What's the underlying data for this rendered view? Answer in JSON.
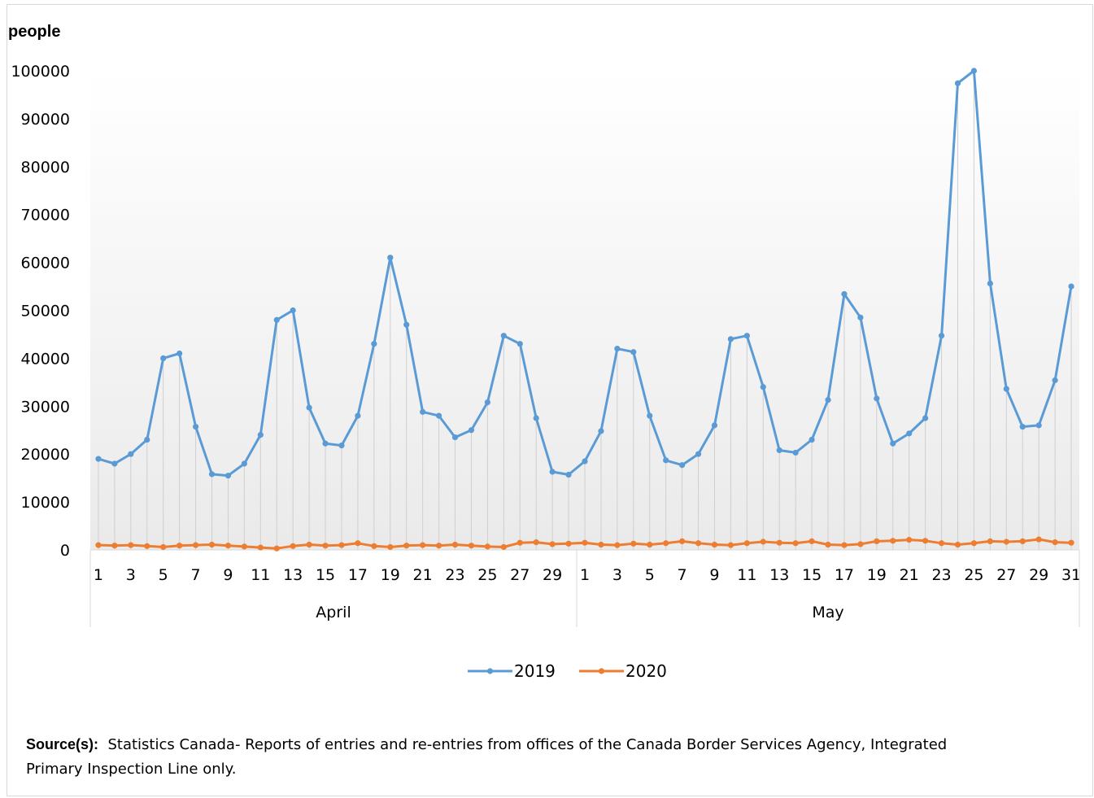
{
  "chart_data": {
    "type": "line",
    "ylabel": "people",
    "ylim": [
      0,
      100000
    ],
    "yticks": [
      0,
      10000,
      20000,
      30000,
      40000,
      50000,
      60000,
      70000,
      80000,
      90000,
      100000
    ],
    "groups": [
      {
        "name": "April",
        "days": 30
      },
      {
        "name": "May",
        "days": 31
      }
    ],
    "x_tick_labels": [
      "1",
      "3",
      "5",
      "7",
      "9",
      "11",
      "13",
      "15",
      "17",
      "19",
      "21",
      "23",
      "25",
      "27",
      "29",
      "1",
      "3",
      "5",
      "7",
      "9",
      "11",
      "13",
      "15",
      "17",
      "19",
      "21",
      "23",
      "25",
      "27",
      "29",
      "31"
    ],
    "series": [
      {
        "name": "2019",
        "color": "#5B9BD5",
        "values": [
          19000,
          18000,
          20000,
          23000,
          40000,
          41000,
          25700,
          15800,
          15500,
          18000,
          24000,
          48000,
          50000,
          29700,
          22200,
          21800,
          28000,
          43000,
          61000,
          47000,
          28800,
          28000,
          23500,
          25000,
          30800,
          44700,
          43000,
          27500,
          16300,
          15700,
          18500,
          24800,
          42000,
          41300,
          28000,
          18700,
          17700,
          20000,
          26000,
          44000,
          44700,
          34000,
          20800,
          20300,
          23000,
          31300,
          53400,
          48500,
          31600,
          22200,
          24300,
          27500,
          44700,
          97400,
          100000,
          55600,
          33600,
          25700,
          26000,
          35400,
          55000
        ]
      },
      {
        "name": "2020",
        "color": "#ED7D31",
        "values": [
          1000,
          900,
          1000,
          800,
          600,
          900,
          1000,
          1100,
          900,
          700,
          500,
          300,
          800,
          1100,
          900,
          1000,
          1400,
          800,
          600,
          900,
          1000,
          900,
          1100,
          900,
          700,
          600,
          1500,
          1600,
          1200,
          1300,
          1500,
          1100,
          1000,
          1300,
          1100,
          1400,
          1800,
          1400,
          1100,
          1000,
          1400,
          1700,
          1500,
          1400,
          1800,
          1100,
          1000,
          1200,
          1800,
          1900,
          2100,
          1900,
          1400,
          1100,
          1400,
          1800,
          1700,
          1800,
          2200,
          1600,
          1500
        ]
      }
    ]
  },
  "source": {
    "label": "Source(s):",
    "text": "Statistics Canada- Reports of entries and re-entries from offices of the Canada Border Services Agency, Integrated Primary Inspection Line only."
  }
}
